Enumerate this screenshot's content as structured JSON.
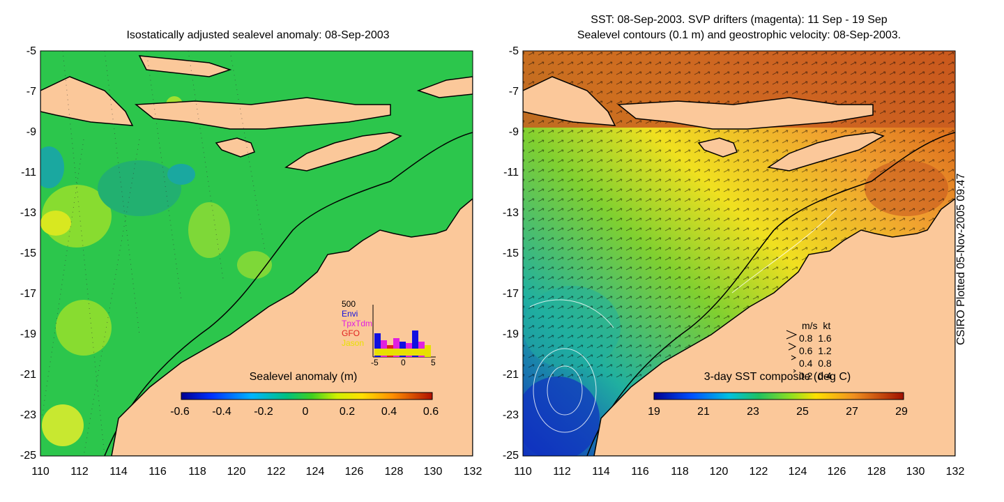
{
  "left_panel": {
    "title": "Isostatically adjusted sealevel anomaly: 08-Sep-2003",
    "y_ticks": [
      "-5",
      "-7",
      "-9",
      "-11",
      "-13",
      "-15",
      "-17",
      "-19",
      "-21",
      "-23",
      "-25"
    ],
    "x_ticks": [
      "110",
      "112",
      "114",
      "116",
      "118",
      "120",
      "122",
      "124",
      "126",
      "128",
      "130",
      "132"
    ],
    "colorbar": {
      "label": "Sealevel anomaly (m)",
      "ticks": [
        "-0.6",
        "-0.4",
        "-0.2",
        "0",
        "0.2",
        "0.4",
        "0.6"
      ]
    },
    "histogram": {
      "ymax_label": "500",
      "legend": [
        "Envi",
        "TpxTdm",
        "GFO",
        "Jason"
      ],
      "legend_colors": [
        "#1010e0",
        "#e020e0",
        "#e02020",
        "#e8e000"
      ],
      "x_ticks": [
        "-5",
        "0",
        "5"
      ]
    }
  },
  "right_panel": {
    "title_line1": "SST: 08-Sep-2003. SVP drifters (magenta): 11 Sep - 19 Sep",
    "title_line2": "Sealevel contours (0.1 m) and geostrophic velocity: 08-Sep-2003.",
    "y_ticks": [
      "-5",
      "-7",
      "-9",
      "-11",
      "-13",
      "-15",
      "-17",
      "-19",
      "-21",
      "-23",
      "-25"
    ],
    "x_ticks": [
      "110",
      "112",
      "114",
      "116",
      "118",
      "120",
      "122",
      "124",
      "126",
      "128",
      "130",
      "132"
    ],
    "velocity_legend": {
      "header_ms": "m/s",
      "header_kt": "kt",
      "rows": [
        {
          "ms": "0.8",
          "kt": "1.6"
        },
        {
          "ms": "0.6",
          "kt": "1.2"
        },
        {
          "ms": "0.4",
          "kt": "0.8"
        },
        {
          "ms": "0.2",
          "kt": "0.4"
        }
      ]
    },
    "colorbar": {
      "label": "3-day SST composite (deg C)",
      "ticks": [
        "19",
        "21",
        "23",
        "25",
        "27",
        "29"
      ]
    }
  },
  "credit": "CSIRO Plotted 05-Nov-2005 09:47",
  "colors": {
    "land": "#fbc89a",
    "ocean_sla": "#27c04a",
    "coast": "#000000"
  }
}
